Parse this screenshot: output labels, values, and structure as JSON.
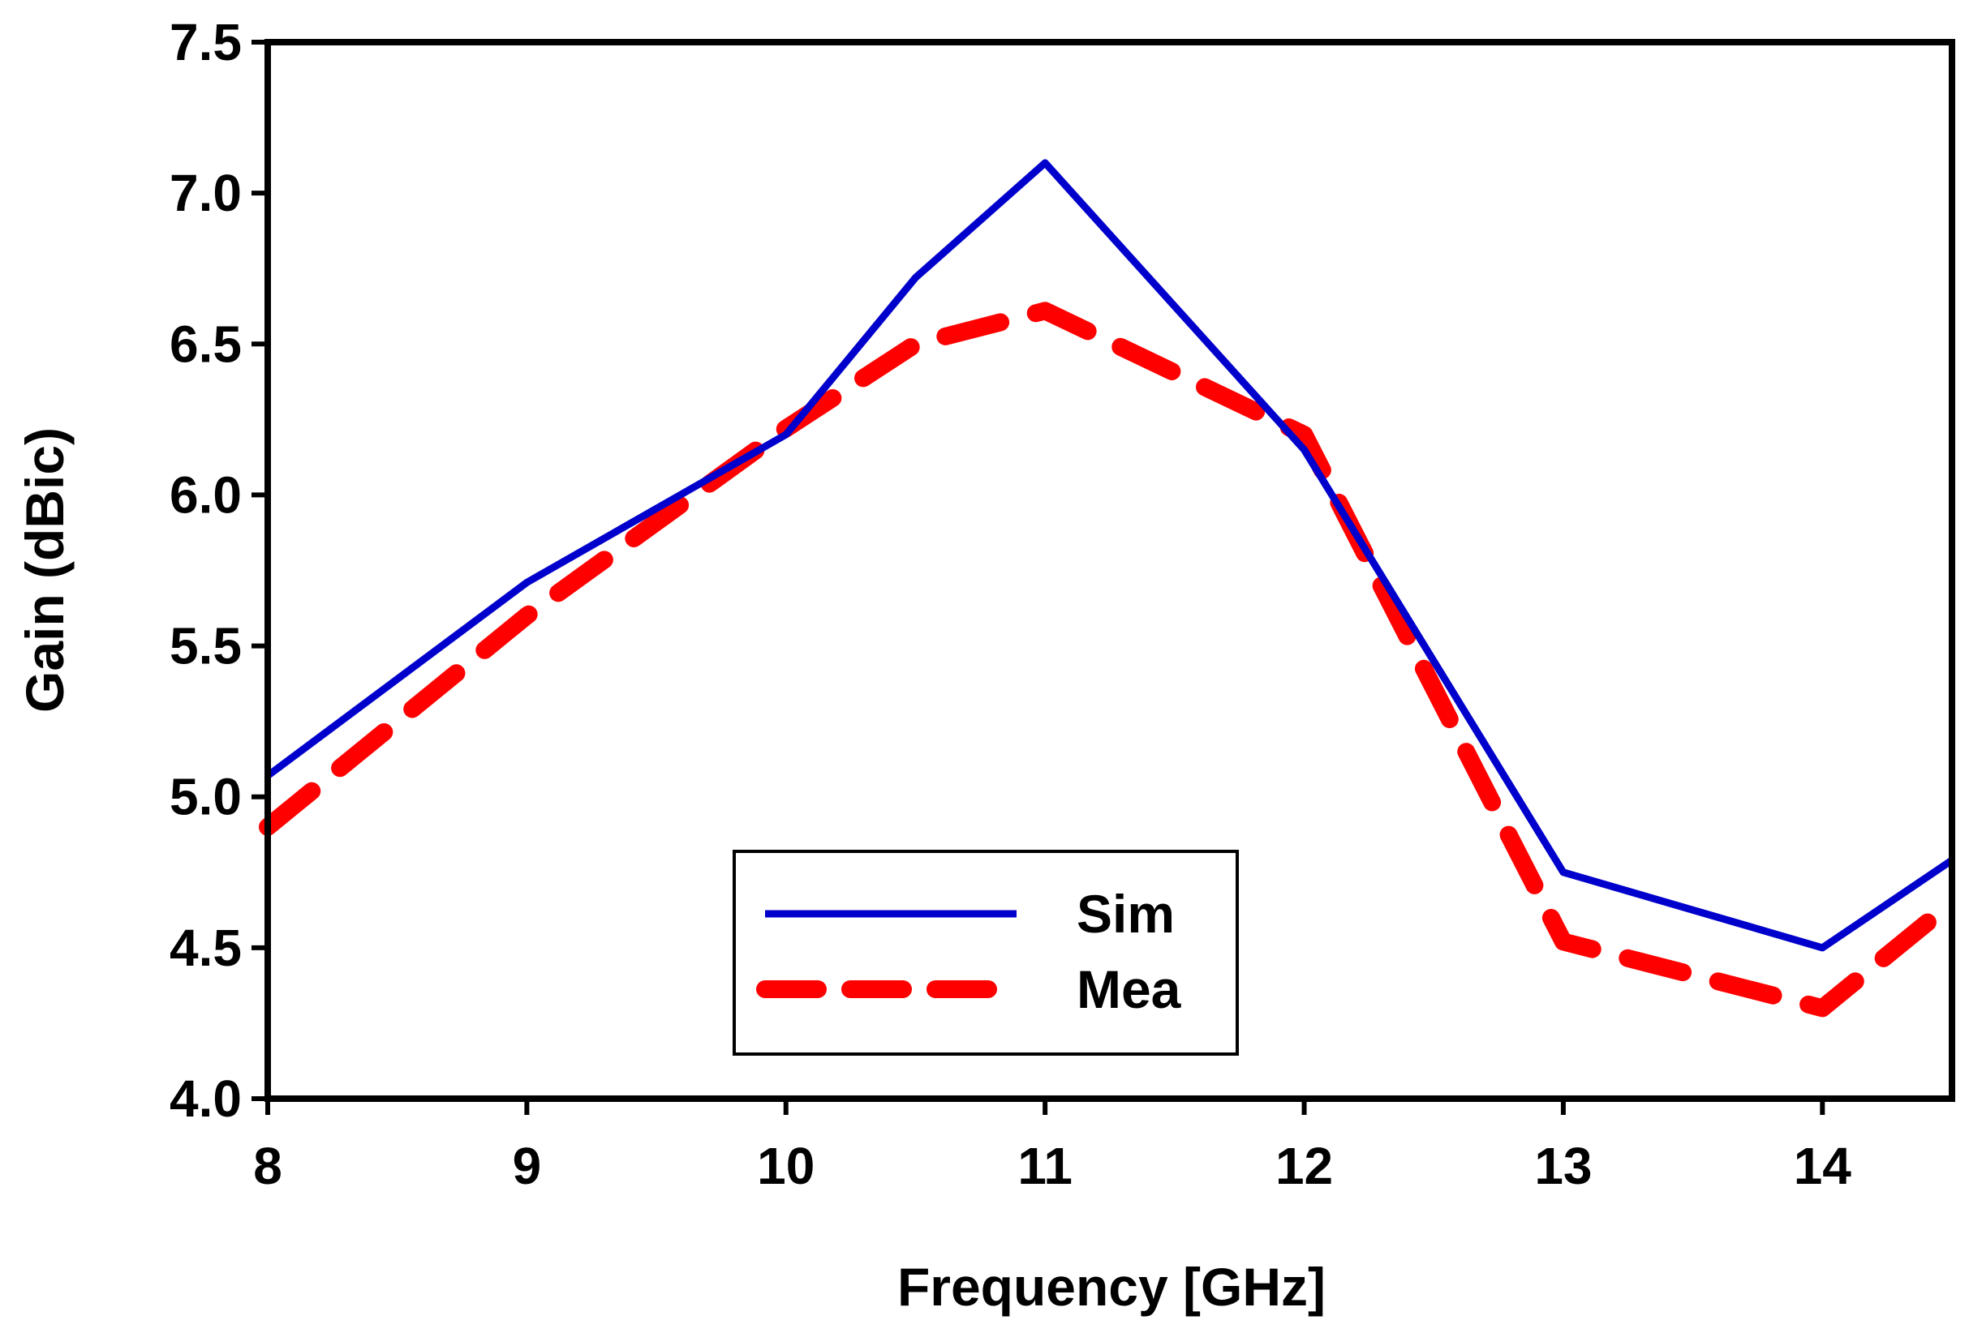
{
  "chart_data": {
    "type": "line",
    "title": "",
    "xlabel": "Frequency [GHz]",
    "ylabel": "Gain (dBic)",
    "xlim": [
      8,
      14.5
    ],
    "ylim": [
      4.0,
      7.5
    ],
    "x_ticks": [
      "8",
      "9",
      "10",
      "11",
      "12",
      "13",
      "14"
    ],
    "y_ticks": [
      "4.0",
      "4.5",
      "5.0",
      "5.5",
      "6.0",
      "6.5",
      "7.0",
      "7.5"
    ],
    "grid": false,
    "legend_position": "bottom-center",
    "series": [
      {
        "name": "Sim",
        "color": "#0000cc",
        "style": "solid",
        "x": [
          8,
          9,
          10,
          10.5,
          11,
          12,
          13,
          14,
          14.5
        ],
        "y": [
          5.07,
          5.71,
          6.2,
          6.72,
          7.1,
          6.15,
          4.75,
          4.5,
          4.79
        ]
      },
      {
        "name": "Mea",
        "color": "#ff0000",
        "style": "dashed",
        "x": [
          8,
          9,
          10,
          10.5,
          11,
          12,
          13,
          14,
          14.5
        ],
        "y": [
          4.9,
          5.6,
          6.22,
          6.5,
          6.61,
          6.2,
          4.52,
          4.3,
          4.65
        ]
      }
    ]
  }
}
